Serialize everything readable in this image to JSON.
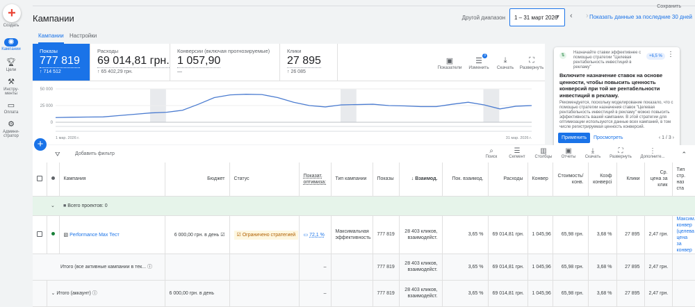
{
  "nav": {
    "create": "Создать",
    "items": [
      {
        "label": "Кампании",
        "icon": "megaphone-icon"
      },
      {
        "label": "Цели",
        "icon": "trophy-icon"
      },
      {
        "label": "Инстру-менты",
        "icon": "tools-icon"
      },
      {
        "label": "Оплата",
        "icon": "credit-card-icon"
      },
      {
        "label": "Админи-стратор",
        "icon": "gear-icon"
      }
    ]
  },
  "header": {
    "save": "Сохранить",
    "title": "Кампании",
    "range_label": "Другой диапазон",
    "range": "1 – 31 март 2026",
    "last30": "Показать данные за последние 30 дней"
  },
  "tabs": [
    "Кампании",
    "Настройки"
  ],
  "metrics": [
    {
      "label": "Показы",
      "value": "777 819",
      "delta": "↑ 714 512"
    },
    {
      "label": "Расходы",
      "value": "69 014,81 грн.",
      "delta": "↑ 65 402,29 грн."
    },
    {
      "label": "Конверсии (включая прогнозируемые)",
      "value": "1 057,90",
      "delta": "—"
    },
    {
      "label": "Клики",
      "value": "27 895",
      "delta": "↑ 26 085"
    }
  ],
  "chart_tools": [
    {
      "label": "Показатели",
      "icon": "add-chart-icon"
    },
    {
      "label": "Изменить",
      "icon": "tune-icon",
      "badge": "3"
    },
    {
      "label": "Скачать",
      "icon": "download-icon"
    },
    {
      "label": "Развернуть",
      "icon": "fullscreen-icon"
    }
  ],
  "chart_data": {
    "type": "line",
    "series": [
      {
        "name": "Показы",
        "values": [
          7000,
          7500,
          7800,
          8000,
          10000,
          12000,
          14000,
          15000,
          18000,
          27000,
          37000,
          41000,
          42000,
          41500,
          37000,
          30000,
          25000,
          23000,
          26000,
          26500,
          27000,
          25000,
          24500,
          23500,
          23500,
          27000,
          30000,
          26000,
          20000,
          24000,
          25000
        ]
      }
    ],
    "x": [
      1,
      2,
      3,
      4,
      5,
      6,
      7,
      8,
      9,
      10,
      11,
      12,
      13,
      14,
      15,
      16,
      17,
      18,
      19,
      20,
      21,
      22,
      23,
      24,
      25,
      26,
      27,
      28,
      29,
      30,
      31
    ],
    "yticks": [
      "0",
      "25 000",
      "50 000"
    ],
    "ylim": [
      0,
      50000
    ],
    "xlabel_start": "1 мар. 2026 г.",
    "xlabel_end": "31 мар. 2026 г.",
    "shaded_days": [
      7,
      19,
      28
    ]
  },
  "rec": {
    "top": "Назначайте ставки эффективнее с помощью стратегии \"Целевая рентабельность инвестиций в рекламу\"",
    "pill": "+6,5 %",
    "title": "Включите назначение ставок на основе ценности, чтобы повысить ценность конверсий при той же рентабельности инвестиций в рекламу.",
    "body": "Рекомендуется, поскольку моделирование показало, что с помощью стратегии назначения ставок \"Целевая рентабельность инвестиций в рекламу\" можно повысить эффективность вашей кампании. В этой стратегии для оптимизации используются данные всех кампаний, в том числе регистрируемая ценность конверсий.",
    "apply": "Применить",
    "view": "Просмотреть",
    "pager": "1 / 3"
  },
  "table_tools": {
    "filter": "Добавить фильтр",
    "items": [
      "Поиск",
      "Сегмент",
      "Столбцы",
      "Отчеты",
      "Скачать",
      "Развернуть",
      "Дополните..."
    ]
  },
  "columns": [
    "Кампания",
    "Бюджет",
    "Статус",
    "Показат. оптимиза:",
    "Тип кампании",
    "Показы",
    "↓ Взаимод.",
    "Пок. взаимод.",
    "Расходы",
    "Конвер",
    "Стоимость/ конв.",
    "Коэф конверсі",
    "Клики",
    "Ср. цена за клик",
    "Тип стр. наз ста"
  ],
  "group": "Всего проектов: 0",
  "campaign": {
    "name": "Performance Max Тест",
    "budget": "6 000,00 грн. в день",
    "status": "Ограничено стратегией",
    "opt": "72,1 %",
    "type": "Максимальная эффективность",
    "impr": "777 819",
    "inter": "28 403 кликов, взаимодейст.",
    "rate": "3,65 %",
    "cost": "69 014,81 грн.",
    "conv": "1 045,96",
    "cpa": "65,98 грн.",
    "cr": "3,68 %",
    "clicks": "27 895",
    "cpc": "2,47 грн.",
    "strategy": "Максим. конвер (целева цена за конвер"
  },
  "total1": {
    "label": "Итого (все активные кампании в тек...",
    "opt": "–",
    "impr": "777 819",
    "inter": "28 403 кликов, взаимодейст.",
    "rate": "3,65 %",
    "cost": "69 014,81 грн.",
    "conv": "1 045,96",
    "cpa": "65,98 грн.",
    "cr": "3,68 %",
    "clicks": "27 895",
    "cpc": "2,47 грн."
  },
  "total2": {
    "label": "Итого (аккаунт)",
    "budget": "6 000,00 грн. в день",
    "opt": "–",
    "impr": "777 819",
    "inter": "28 403 кликов, взаимодейст.",
    "rate": "3,65 %",
    "cost": "69 014,81 грн.",
    "conv": "1 045,96",
    "cpa": "65,98 грн.",
    "cr": "3,68 %",
    "clicks": "27 895",
    "cpc": "2,47 грн."
  }
}
